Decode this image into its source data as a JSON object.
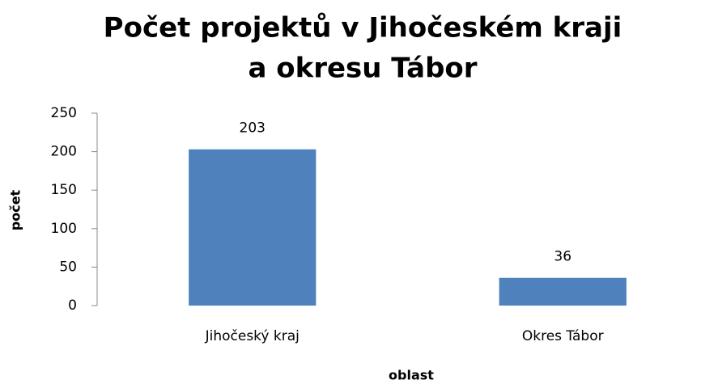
{
  "chart_data": {
    "type": "bar",
    "title": [
      "Počet projektů v Jihočeském kraji",
      "a okresu Tábor"
    ],
    "x_label": "oblast",
    "y_label": "počet",
    "categories": [
      "Jihočeský kraj",
      "Okres Tábor"
    ],
    "values": [
      203,
      36
    ],
    "color": "#4f81bd",
    "ylim": [
      0,
      250
    ],
    "yticks": [
      0,
      50,
      100,
      150,
      200,
      250
    ],
    "grid": false
  }
}
